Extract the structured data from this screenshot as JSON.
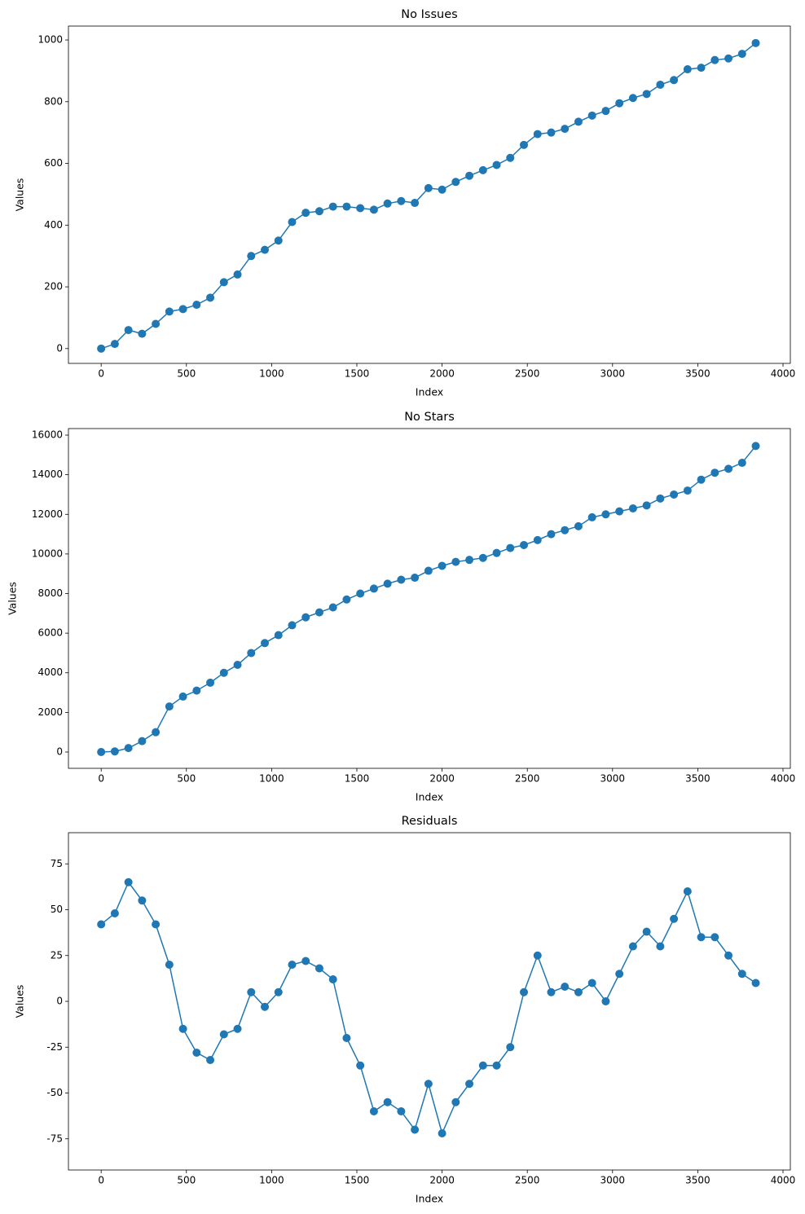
{
  "chart_data": [
    {
      "type": "line",
      "title": "No Issues",
      "xlabel": "Index",
      "ylabel": "Values",
      "color": "#1f77b4",
      "markers": true,
      "xlim": [
        -192,
        4043
      ],
      "xticks": [
        0,
        500,
        1000,
        1500,
        2000,
        2500,
        3000,
        3500,
        4000
      ],
      "ylim": [
        -48,
        1045
      ],
      "yticks": [
        0,
        200,
        400,
        600,
        800,
        1000
      ],
      "x": [
        0,
        80,
        160,
        240,
        320,
        400,
        480,
        560,
        640,
        720,
        800,
        880,
        960,
        1040,
        1120,
        1200,
        1280,
        1360,
        1440,
        1520,
        1600,
        1680,
        1760,
        1840,
        1920,
        2000,
        2080,
        2160,
        2240,
        2320,
        2400,
        2480,
        2560,
        2640,
        2720,
        2800,
        2880,
        2960,
        3040,
        3120,
        3200,
        3280,
        3360,
        3440,
        3520,
        3600,
        3680,
        3760,
        3840
      ],
      "values": [
        0,
        15,
        60,
        48,
        80,
        120,
        128,
        142,
        165,
        215,
        240,
        300,
        320,
        350,
        410,
        440,
        445,
        460,
        460,
        455,
        450,
        470,
        478,
        472,
        520,
        515,
        540,
        560,
        578,
        595,
        618,
        660,
        695,
        700,
        712,
        735,
        755,
        770,
        795,
        812,
        825,
        855,
        870,
        905,
        910,
        935,
        940,
        955,
        990
      ]
    },
    {
      "type": "line",
      "title": "No Stars",
      "xlabel": "Index",
      "ylabel": "Values",
      "color": "#1f77b4",
      "markers": true,
      "xlim": [
        -192,
        4043
      ],
      "xticks": [
        0,
        500,
        1000,
        1500,
        2000,
        2500,
        3000,
        3500,
        4000
      ],
      "ylim": [
        -823,
        16330
      ],
      "yticks": [
        0,
        2000,
        4000,
        6000,
        8000,
        10000,
        12000,
        14000,
        16000
      ],
      "x": [
        0,
        80,
        160,
        240,
        320,
        400,
        480,
        560,
        640,
        720,
        800,
        880,
        960,
        1040,
        1120,
        1200,
        1280,
        1360,
        1440,
        1520,
        1600,
        1680,
        1760,
        1840,
        1920,
        2000,
        2080,
        2160,
        2240,
        2320,
        2400,
        2480,
        2560,
        2640,
        2720,
        2800,
        2880,
        2960,
        3040,
        3120,
        3200,
        3280,
        3360,
        3440,
        3520,
        3600,
        3680,
        3760,
        3840
      ],
      "values": [
        0,
        30,
        200,
        550,
        1000,
        2300,
        2800,
        3100,
        3500,
        4000,
        4400,
        5000,
        5500,
        5900,
        6400,
        6800,
        7050,
        7300,
        7700,
        8000,
        8250,
        8500,
        8700,
        8800,
        9150,
        9400,
        9600,
        9700,
        9800,
        10050,
        10300,
        10450,
        10700,
        11000,
        11200,
        11400,
        11850,
        12000,
        12150,
        12300,
        12450,
        12800,
        13000,
        13200,
        13750,
        14100,
        14300,
        14600,
        15450
      ]
    },
    {
      "type": "line",
      "title": "Residuals",
      "xlabel": "Index",
      "ylabel": "Values",
      "color": "#1f77b4",
      "markers": true,
      "xlim": [
        -192,
        4043
      ],
      "xticks": [
        0,
        500,
        1000,
        1500,
        2000,
        2500,
        3000,
        3500,
        4000
      ],
      "ylim": [
        -92,
        92
      ],
      "yticks": [
        -75,
        -50,
        -25,
        0,
        25,
        50,
        75
      ],
      "x": [
        0,
        80,
        160,
        240,
        320,
        400,
        480,
        560,
        640,
        720,
        800,
        880,
        960,
        1040,
        1120,
        1200,
        1280,
        1360,
        1440,
        1520,
        1600,
        1680,
        1760,
        1840,
        1920,
        2000,
        2080,
        2160,
        2240,
        2320,
        2400,
        2480,
        2560,
        2640,
        2720,
        2800,
        2880,
        2960,
        3040,
        3120,
        3200,
        3280,
        3360,
        3440,
        3520,
        3600,
        3680,
        3760,
        3840
      ],
      "values": [
        42,
        48,
        65,
        55,
        42,
        20,
        -15,
        -28,
        -32,
        -18,
        -15,
        5,
        -3,
        5,
        20,
        22,
        18,
        12,
        -20,
        -35,
        -60,
        -55,
        -60,
        -70,
        -45,
        -72,
        -55,
        -45,
        -35,
        -35,
        -25,
        5,
        25,
        5,
        8,
        5,
        10,
        0,
        15,
        30,
        38,
        30,
        45,
        60,
        35,
        35,
        25,
        15,
        10
      ]
    }
  ]
}
